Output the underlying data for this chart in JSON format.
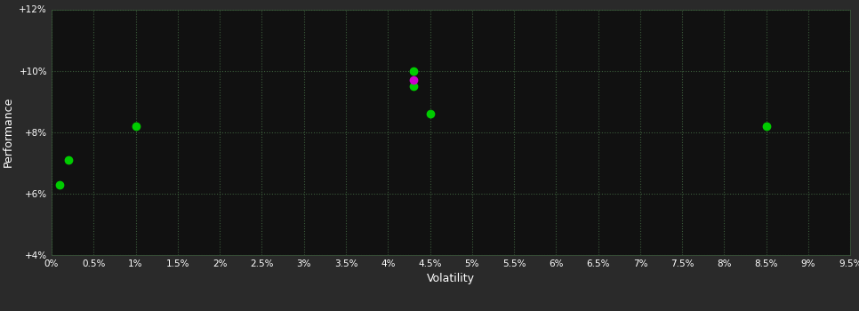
{
  "background_color": "#2a2a2a",
  "plot_bg_color": "#111111",
  "grid_color": "#3a5a3a",
  "text_color": "#ffffff",
  "xlabel": "Volatility",
  "ylabel": "Performance",
  "xlim": [
    0,
    0.095
  ],
  "ylim": [
    0.04,
    0.12
  ],
  "ytick_values": [
    0.04,
    0.06,
    0.08,
    0.1,
    0.12
  ],
  "points_green": [
    [
      0.002,
      0.071
    ],
    [
      0.001,
      0.063
    ],
    [
      0.01,
      0.082
    ],
    [
      0.043,
      0.1
    ],
    [
      0.043,
      0.095
    ],
    [
      0.045,
      0.086
    ],
    [
      0.085,
      0.082
    ]
  ],
  "points_magenta": [
    [
      0.043,
      0.097
    ]
  ],
  "green_color": "#00cc00",
  "magenta_color": "#cc00cc",
  "marker_size": 6
}
